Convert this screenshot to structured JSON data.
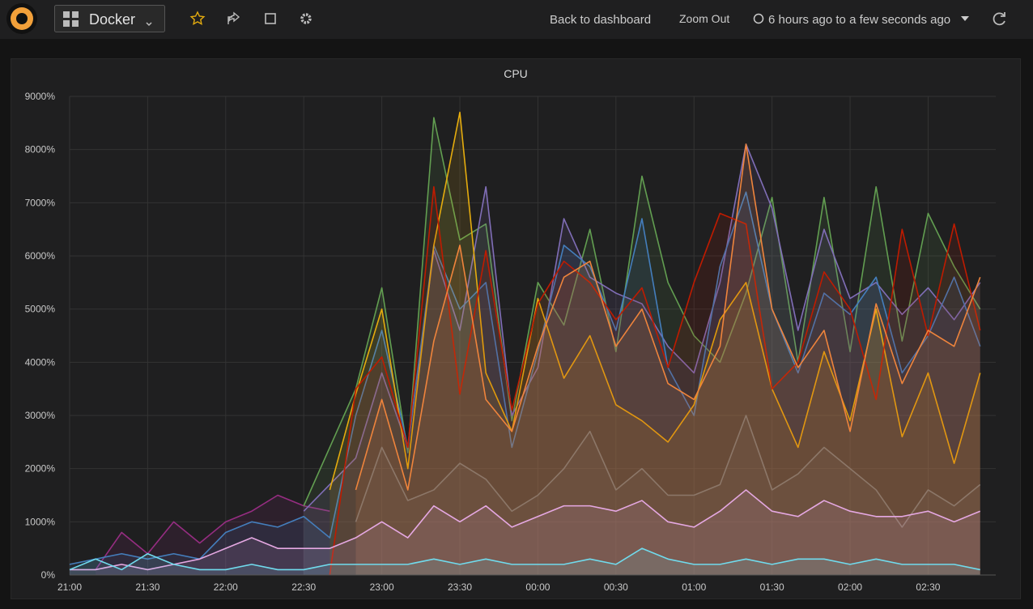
{
  "nav": {
    "dashboard": "Docker",
    "back": "Back to dashboard",
    "zoom": "Zoom Out",
    "time_range": "6 hours ago to a few seconds ago"
  },
  "chart_data": {
    "type": "line",
    "title": "CPU",
    "grid": true,
    "fill": true,
    "x": [
      0,
      10,
      20,
      30,
      40,
      50,
      60,
      70,
      80,
      90,
      100,
      110,
      120,
      130,
      140,
      150,
      160,
      170,
      180,
      190,
      200,
      210,
      220,
      230,
      240,
      250,
      260,
      270,
      280,
      290,
      300,
      310,
      320,
      330,
      340,
      350
    ],
    "xlim": [
      0,
      356
    ],
    "xticks": [
      {
        "value": 0,
        "label": "21:00"
      },
      {
        "value": 30,
        "label": "21:30"
      },
      {
        "value": 60,
        "label": "22:00"
      },
      {
        "value": 90,
        "label": "22:30"
      },
      {
        "value": 120,
        "label": "23:00"
      },
      {
        "value": 150,
        "label": "23:30"
      },
      {
        "value": 180,
        "label": "00:00"
      },
      {
        "value": 210,
        "label": "00:30"
      },
      {
        "value": 240,
        "label": "01:00"
      },
      {
        "value": 270,
        "label": "01:30"
      },
      {
        "value": 300,
        "label": "02:00"
      },
      {
        "value": 330,
        "label": "02:30"
      }
    ],
    "ylim": [
      0,
      9000
    ],
    "yticks": [
      {
        "value": 0,
        "label": "0%"
      },
      {
        "value": 1000,
        "label": "1000%"
      },
      {
        "value": 2000,
        "label": "2000%"
      },
      {
        "value": 3000,
        "label": "3000%"
      },
      {
        "value": 4000,
        "label": "4000%"
      },
      {
        "value": 5000,
        "label": "5000%"
      },
      {
        "value": 6000,
        "label": "6000%"
      },
      {
        "value": 7000,
        "label": "7000%"
      },
      {
        "value": 8000,
        "label": "8000%"
      },
      {
        "value": 9000,
        "label": "9000%"
      }
    ],
    "series": [
      {
        "color": "#962d82",
        "values": [
          null,
          100,
          800,
          400,
          1000,
          600,
          1000,
          1200,
          1500,
          1300,
          1200,
          null,
          null,
          null,
          null,
          null,
          null,
          null,
          null,
          null,
          null,
          null,
          null,
          null,
          null,
          null,
          null,
          null,
          null,
          null,
          null,
          null,
          null,
          null,
          null,
          null
        ]
      },
      {
        "color": "#6d7f8b",
        "values": [
          null,
          null,
          null,
          null,
          null,
          null,
          null,
          null,
          null,
          null,
          null,
          1000,
          2400,
          1400,
          1600,
          2100,
          1800,
          1200,
          1500,
          2000,
          2700,
          1600,
          2000,
          1500,
          1500,
          1700,
          3000,
          1600,
          1900,
          2400,
          2000,
          1600,
          900,
          1600,
          1300,
          1700
        ]
      },
      {
        "color": "#629e51",
        "values": [
          null,
          null,
          null,
          null,
          null,
          null,
          null,
          null,
          null,
          1300,
          2400,
          3500,
          5400,
          2300,
          8600,
          6300,
          6600,
          2900,
          5500,
          4700,
          6500,
          4200,
          7500,
          5500,
          4500,
          4000,
          5300,
          7100,
          4000,
          7100,
          4200,
          7300,
          4400,
          6800,
          5800,
          5000
        ]
      },
      {
        "color": "#806eb7",
        "values": [
          null,
          null,
          null,
          null,
          null,
          null,
          null,
          null,
          null,
          1200,
          1700,
          2200,
          3800,
          2400,
          6100,
          4600,
          7300,
          3000,
          3900,
          6700,
          5600,
          5300,
          5100,
          4300,
          3800,
          5500,
          8100,
          6900,
          4600,
          6500,
          5200,
          5500,
          4900,
          5400,
          4800,
          5500
        ]
      },
      {
        "color": "#447ebc",
        "values": [
          200,
          300,
          400,
          300,
          400,
          300,
          800,
          1000,
          900,
          1100,
          700,
          3000,
          4600,
          2400,
          6200,
          5000,
          5500,
          2400,
          4200,
          6200,
          5800,
          4600,
          6700,
          3900,
          3000,
          5800,
          7200,
          5000,
          3800,
          5300,
          4900,
          5600,
          3800,
          4500,
          5600,
          4300
        ]
      },
      {
        "color": "#e5ac0e",
        "values": [
          null,
          null,
          null,
          null,
          null,
          null,
          null,
          null,
          null,
          null,
          1600,
          3400,
          5000,
          2000,
          6200,
          8700,
          3800,
          2700,
          5200,
          3700,
          4500,
          3200,
          2900,
          2500,
          3200,
          4800,
          5500,
          3500,
          2400,
          4200,
          2900,
          5000,
          2600,
          3800,
          2100,
          3800
        ]
      },
      {
        "color": "#bf1b00",
        "values": [
          null,
          null,
          null,
          null,
          null,
          null,
          null,
          null,
          null,
          null,
          0,
          3500,
          4100,
          2400,
          7300,
          3400,
          6100,
          3100,
          5100,
          5900,
          5500,
          4800,
          5400,
          3900,
          5500,
          6800,
          6600,
          3500,
          4000,
          5700,
          5000,
          3300,
          6500,
          4500,
          6600,
          4600
        ]
      },
      {
        "color": "#ef843c",
        "values": [
          null,
          null,
          null,
          null,
          null,
          null,
          null,
          null,
          null,
          null,
          null,
          1600,
          3300,
          1600,
          4400,
          6200,
          3300,
          2700,
          4300,
          5600,
          5900,
          4300,
          5000,
          3600,
          3300,
          4300,
          8100,
          5000,
          3900,
          4600,
          2700,
          5100,
          3600,
          4600,
          4300,
          5600
        ]
      },
      {
        "color": "#e5a8e2",
        "values": [
          100,
          100,
          200,
          100,
          200,
          300,
          500,
          700,
          500,
          500,
          500,
          700,
          1000,
          700,
          1300,
          1000,
          1300,
          900,
          1100,
          1300,
          1300,
          1200,
          1400,
          1000,
          900,
          1200,
          1600,
          1200,
          1100,
          1400,
          1200,
          1100,
          1100,
          1200,
          1000,
          1200
        ]
      },
      {
        "color": "#70dbed",
        "values": [
          100,
          300,
          100,
          400,
          200,
          100,
          100,
          200,
          100,
          100,
          200,
          200,
          200,
          200,
          300,
          200,
          300,
          200,
          200,
          200,
          300,
          200,
          500,
          300,
          200,
          200,
          300,
          200,
          300,
          300,
          200,
          300,
          200,
          200,
          200,
          100
        ]
      }
    ]
  }
}
